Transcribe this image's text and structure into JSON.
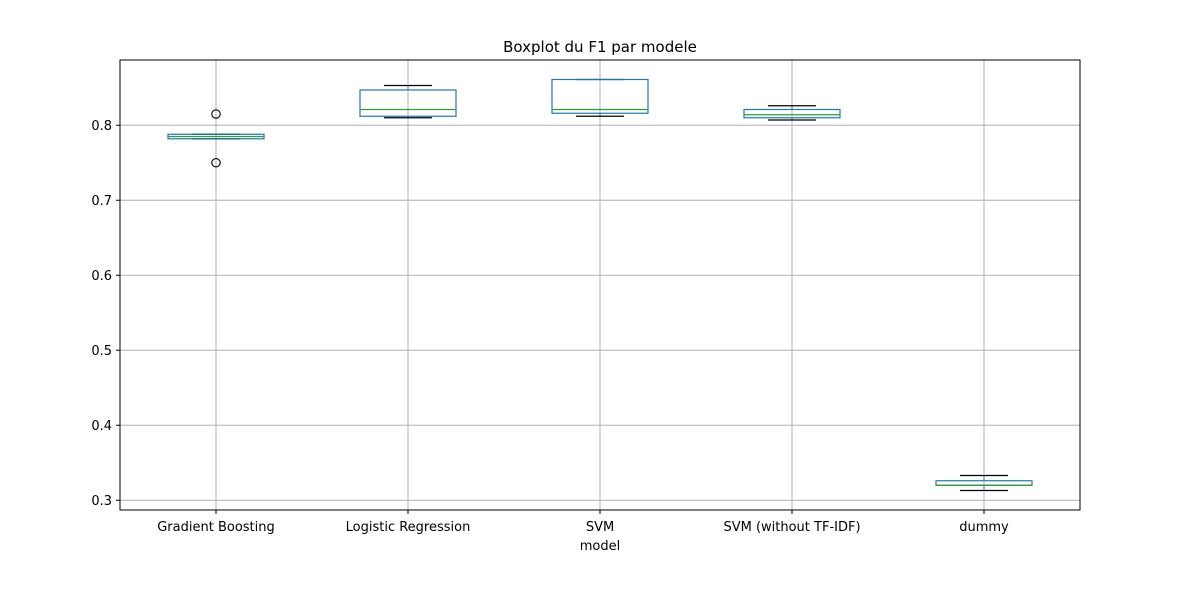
{
  "chart_data": {
    "type": "boxplot",
    "title": "Boxplot du F1 par modele",
    "xlabel": "model",
    "ylabel": "",
    "ylim": [
      0.287,
      0.887
    ],
    "yticks": [
      0.3,
      0.4,
      0.5,
      0.6,
      0.7,
      0.8
    ],
    "ytick_labels": [
      "0.3",
      "0.4",
      "0.5",
      "0.6",
      "0.7",
      "0.8"
    ],
    "grid": true,
    "categories": [
      "Gradient Boosting",
      "Logistic Regression",
      "SVM",
      "SVM (without TF-IDF)",
      "dummy"
    ],
    "boxes": [
      {
        "name": "Gradient Boosting",
        "whisker_low": 0.782,
        "q1": 0.782,
        "median": 0.785,
        "q3": 0.788,
        "whisker_high": 0.788,
        "outliers": [
          0.815,
          0.75
        ]
      },
      {
        "name": "Logistic Regression",
        "whisker_low": 0.81,
        "q1": 0.812,
        "median": 0.821,
        "q3": 0.847,
        "whisker_high": 0.853,
        "outliers": []
      },
      {
        "name": "SVM",
        "whisker_low": 0.812,
        "q1": 0.816,
        "median": 0.821,
        "q3": 0.861,
        "whisker_high": 0.861,
        "outliers": []
      },
      {
        "name": "SVM (without TF-IDF)",
        "whisker_low": 0.807,
        "q1": 0.81,
        "median": 0.814,
        "q3": 0.821,
        "whisker_high": 0.826,
        "outliers": []
      },
      {
        "name": "dummy",
        "whisker_low": 0.313,
        "q1": 0.32,
        "median": 0.32,
        "q3": 0.326,
        "whisker_high": 0.333,
        "outliers": []
      }
    ],
    "colors": {
      "box": "#1f77b4",
      "median": "#2ca02c",
      "whisker": "#000000",
      "grid": "#b0b0b0",
      "outlier": "#000000"
    }
  }
}
